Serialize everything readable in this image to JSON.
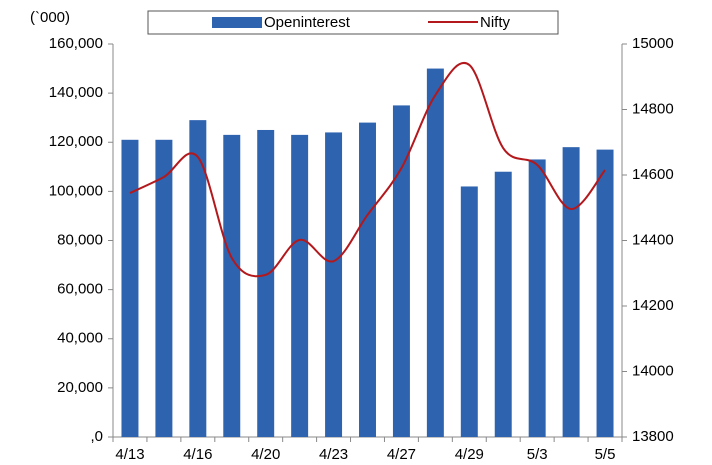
{
  "chart_data": {
    "type": "bar_line",
    "y_unit_label": "(`000)",
    "categories": [
      "4/13",
      null,
      "4/16",
      null,
      "4/20",
      null,
      "4/23",
      null,
      "4/27",
      null,
      "4/29",
      null,
      "5/3",
      null,
      "5/5"
    ],
    "series": [
      {
        "name": "Openinterest",
        "type": "bar",
        "color": "#2e63b0",
        "values": [
          121000,
          121000,
          129000,
          123000,
          125000,
          123000,
          124000,
          128000,
          135000,
          150000,
          102000,
          108000,
          113000,
          118000,
          117000
        ]
      },
      {
        "name": "Nifty",
        "type": "line",
        "axis": "y2",
        "color": "#b3181c",
        "values": [
          14545,
          14594,
          14655,
          14347,
          14295,
          14402,
          14337,
          14478,
          14621,
          14844,
          14936,
          14682,
          14631,
          14496,
          14615
        ]
      }
    ],
    "ylim": [
      0,
      160000
    ],
    "yticks": [
      {
        "value": 0,
        "label": ",0"
      },
      {
        "value": 20000,
        "label": "20,000"
      },
      {
        "value": 40000,
        "label": "40,000"
      },
      {
        "value": 60000,
        "label": "60,000"
      },
      {
        "value": 80000,
        "label": "80,000"
      },
      {
        "value": 100000,
        "label": "100,000"
      },
      {
        "value": 120000,
        "label": "120,000"
      },
      {
        "value": 140000,
        "label": "140,000"
      },
      {
        "value": 160000,
        "label": "160,000"
      }
    ],
    "y2lim": [
      13800,
      15000
    ],
    "y2ticks": [
      13800,
      14000,
      14200,
      14400,
      14600,
      14800,
      15000
    ],
    "legend": "top"
  }
}
